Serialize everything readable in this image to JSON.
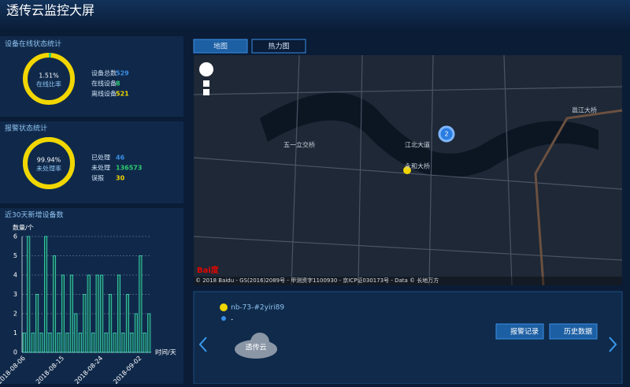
{
  "header": {
    "title": "透传云监控大屏"
  },
  "device_panel": {
    "title": "设备在线状态统计",
    "donut": {
      "value": 1.51,
      "label": "1.51%",
      "caption": "在线比率",
      "color": "#2ecc71",
      "rest_color": "#f2d600"
    },
    "stats": [
      {
        "label": "设备总数",
        "value": 529
      },
      {
        "label": "在线设备",
        "value": 8
      },
      {
        "label": "离线设备",
        "value": 521
      }
    ]
  },
  "alarm_panel": {
    "title": "报警状态统计",
    "donut": {
      "value": 99.94,
      "label": "99.94%",
      "caption": "未处理率",
      "color": "#f2d600",
      "rest_color": "#2ecc71"
    },
    "stats": [
      {
        "label": "已处理",
        "value": 46
      },
      {
        "label": "未处理",
        "value": 136573
      },
      {
        "label": "误报",
        "value": 30
      }
    ]
  },
  "chart_data": {
    "type": "bar",
    "title": "近30天新增设备数",
    "y_label": "数量/个",
    "x_label": "时间/天",
    "categories": [
      "2018-08-06",
      null,
      null,
      null,
      null,
      null,
      null,
      null,
      null,
      "2018-08-15",
      null,
      null,
      null,
      null,
      null,
      null,
      null,
      null,
      "2018-08-24",
      null,
      null,
      null,
      null,
      null,
      null,
      null,
      null,
      "2018-09-02",
      null,
      null
    ],
    "values": [
      1,
      6,
      1,
      3,
      1,
      6,
      1,
      5,
      1,
      4,
      1,
      4,
      2,
      1,
      3,
      4,
      1,
      4,
      4,
      1,
      3,
      1,
      4,
      1,
      3,
      1,
      2,
      5,
      1,
      2
    ],
    "color": "#3de0c0",
    "ylim": [
      0,
      6
    ],
    "yticks": [
      0,
      1,
      2,
      3,
      4,
      5,
      6
    ],
    "grid": true
  },
  "map": {
    "tabs": [
      "地图",
      "热力图"
    ],
    "labels": [
      "江北大道",
      "永和大桥",
      "五一立交桥",
      "邕江大桥"
    ],
    "cluster": "2",
    "logo": "Bai度",
    "copyright": "© 2018 Baidu - GS(2016)2089号 - 甲测资字1100930 - 京ICP证030173号 - Data © 长地万方"
  },
  "device": {
    "name": "nb-73-#2yiri89",
    "location": "-",
    "cloud": "透传云",
    "buttons": [
      "报警记录",
      "历史数据"
    ]
  }
}
